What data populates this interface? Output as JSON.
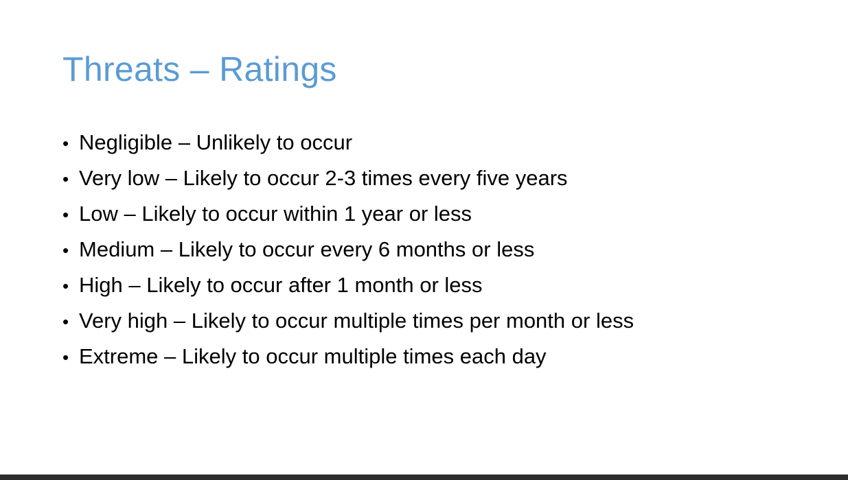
{
  "slide": {
    "title": "Threats – Ratings",
    "bullet_symbol": "•",
    "items": [
      {
        "text": "Negligible – Unlikely to occur"
      },
      {
        "text": "Very low – Likely to occur 2-3 times every five years"
      },
      {
        "text": "Low – Likely to occur within 1 year or less"
      },
      {
        "text": "Medium – Likely to occur every 6 months or less"
      },
      {
        "text": "High – Likely to occur after 1 month or less"
      },
      {
        "text": "Very high – Likely to occur multiple times per month or less"
      },
      {
        "text": "Extreme – Likely to occur multiple times each day"
      }
    ]
  },
  "colors": {
    "title": "#5b9bd5",
    "body_text": "#000000",
    "background": "#ffffff",
    "bottom_bar": "#2d2d30"
  }
}
